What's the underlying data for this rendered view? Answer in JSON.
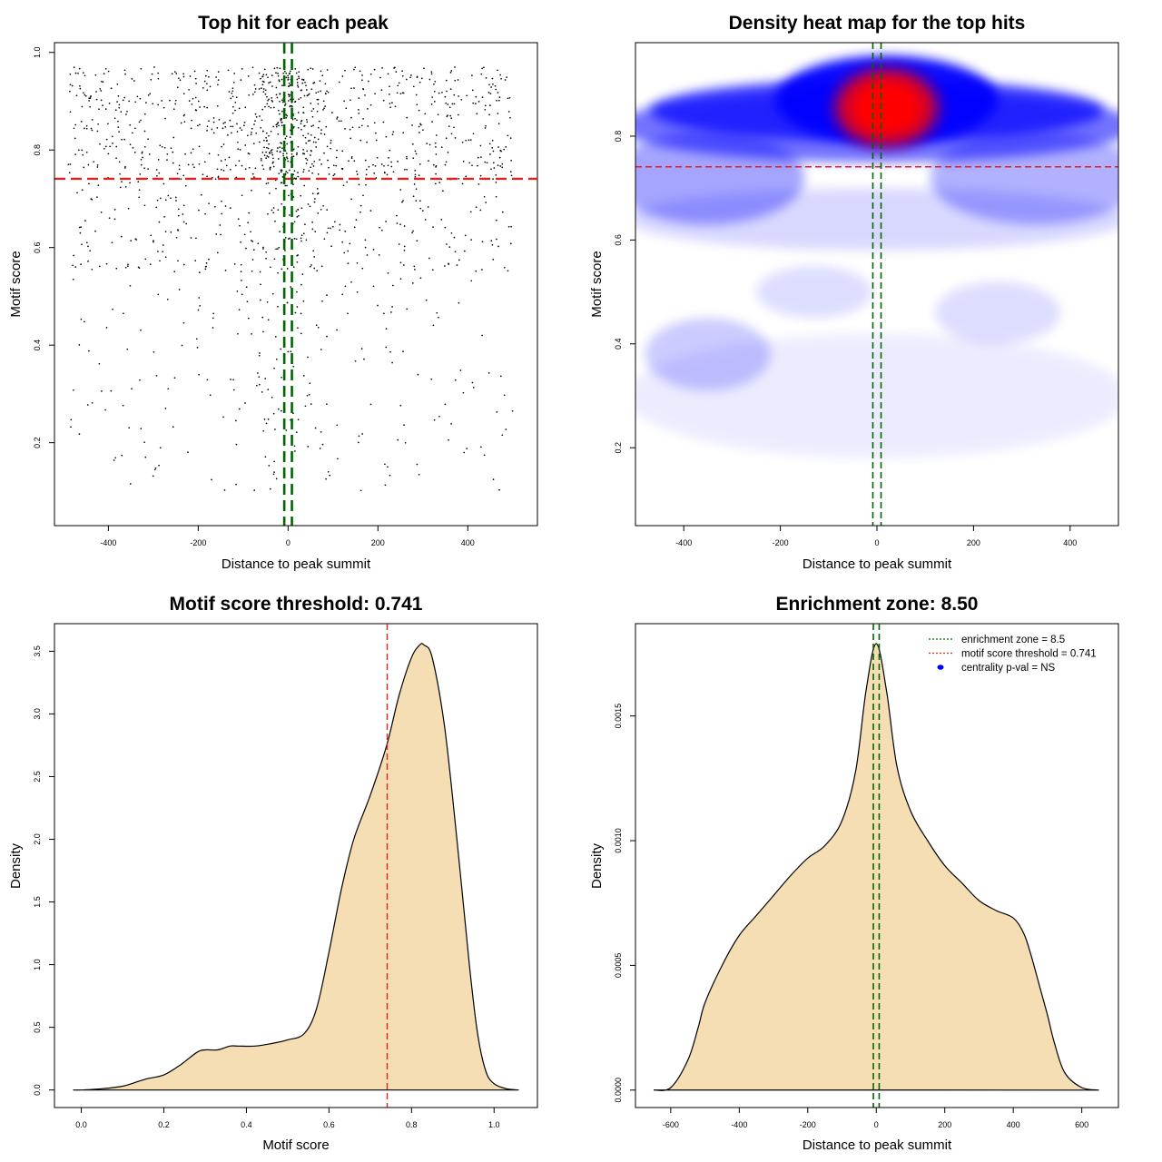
{
  "chart_data": [
    {
      "type": "scatter",
      "title": "Top hit for each peak",
      "xlabel": "Distance to peak summit",
      "ylabel": "Motif score",
      "xlim": [
        -520,
        555
      ],
      "ylim": [
        0.03,
        1.02
      ],
      "xticks": [
        -400,
        -200,
        0,
        200,
        400
      ],
      "yticks": [
        0.2,
        0.4,
        0.6,
        0.8,
        1.0
      ],
      "ytick_labels": [
        "0.2",
        "0.4",
        "0.6",
        "0.8",
        "1.0"
      ],
      "hline": 0.741,
      "vlines": [
        -8.5,
        8.5
      ],
      "hline_color": "#dd2222",
      "vline_color": "#006600"
    },
    {
      "type": "heatmap",
      "title": "Density heat map for the top hits",
      "xlabel": "Distance to peak summit",
      "ylabel": "Motif score",
      "xlim": [
        -500,
        500
      ],
      "ylim": [
        0.05,
        0.98
      ],
      "xticks": [
        -400,
        -200,
        0,
        200,
        400
      ],
      "yticks": [
        0.2,
        0.4,
        0.6,
        0.8
      ],
      "ytick_labels": [
        "0.2",
        "0.4",
        "0.6",
        "0.8"
      ],
      "hline": 0.741,
      "vlines": [
        -8.5,
        8.5
      ],
      "colors": [
        "#ffffff",
        "#0000ff",
        "#ff0000"
      ],
      "density_peak": {
        "x": 20,
        "y": 0.855
      }
    },
    {
      "type": "area",
      "title": "Motif score threshold: 0.741",
      "xlabel": "Motif score",
      "ylabel": "Density",
      "xlim": [
        -0.065,
        1.105
      ],
      "ylim": [
        -0.14,
        3.72
      ],
      "xticks": [
        0.0,
        0.2,
        0.4,
        0.6,
        0.8,
        1.0
      ],
      "xtick_labels": [
        "0.0",
        "0.2",
        "0.4",
        "0.6",
        "0.8",
        "1.0"
      ],
      "yticks": [
        0.0,
        0.5,
        1.0,
        1.5,
        2.0,
        2.5,
        3.0,
        3.5
      ],
      "ytick_labels": [
        "0.0",
        "0.5",
        "1.0",
        "1.5",
        "2.0",
        "2.5",
        "3.0",
        "3.5"
      ],
      "fill_color": "#f5deb3",
      "vline": 0.741,
      "vline_color": "#dd2222",
      "x": [
        -0.02,
        0.0,
        0.05,
        0.1,
        0.13,
        0.16,
        0.2,
        0.24,
        0.28,
        0.3,
        0.33,
        0.36,
        0.38,
        0.42,
        0.46,
        0.5,
        0.54,
        0.57,
        0.6,
        0.63,
        0.66,
        0.7,
        0.74,
        0.77,
        0.8,
        0.82,
        0.83,
        0.85,
        0.88,
        0.91,
        0.94,
        0.96,
        0.98,
        1.0,
        1.03,
        1.06
      ],
      "y": [
        0.0,
        0.0,
        0.01,
        0.03,
        0.06,
        0.09,
        0.12,
        0.2,
        0.3,
        0.32,
        0.32,
        0.35,
        0.35,
        0.35,
        0.37,
        0.4,
        0.45,
        0.65,
        1.1,
        1.6,
        2.0,
        2.35,
        2.75,
        3.15,
        3.45,
        3.55,
        3.55,
        3.45,
        2.9,
        2.0,
        1.0,
        0.45,
        0.15,
        0.05,
        0.01,
        0.0
      ]
    },
    {
      "type": "area",
      "title": "Enrichment zone: 8.50",
      "xlabel": "Distance to peak summit",
      "ylabel": "Density",
      "xlim": [
        -703,
        707
      ],
      "ylim": [
        -7e-05,
        0.00187
      ],
      "xticks": [
        -600,
        -400,
        -200,
        0,
        200,
        400,
        600
      ],
      "yticks": [
        0.0,
        0.0005,
        0.001,
        0.0015
      ],
      "ytick_labels": [
        "0.0000",
        "0.0005",
        "0.0010",
        "0.0015"
      ],
      "fill_color": "#f5deb3",
      "vlines": [
        -8.5,
        8.5
      ],
      "vline_color": "#006600",
      "x": [
        -650,
        -600,
        -550,
        -520,
        -500,
        -450,
        -400,
        -350,
        -300,
        -250,
        -200,
        -150,
        -100,
        -60,
        -30,
        0,
        30,
        60,
        100,
        150,
        200,
        250,
        300,
        350,
        400,
        430,
        450,
        480,
        500,
        520,
        550,
        600,
        650
      ],
      "y": [
        0.0,
        1e-05,
        0.00012,
        0.00025,
        0.00035,
        0.0005,
        0.00062,
        0.0007,
        0.00078,
        0.00086,
        0.00093,
        0.00098,
        0.00108,
        0.00128,
        0.0016,
        0.00179,
        0.0016,
        0.0013,
        0.00112,
        0.001,
        0.0009,
        0.00083,
        0.00076,
        0.00072,
        0.00069,
        0.00063,
        0.00055,
        0.0004,
        0.0003,
        0.00019,
        7e-05,
        1e-05,
        0.0
      ],
      "legend": {
        "position": "top-right",
        "entries": [
          {
            "label": "enrichment zone = 8.5",
            "color": "#006600",
            "style": "dotted-line"
          },
          {
            "label": "motif score threshold = 0.741",
            "color": "#dd2222",
            "style": "dotted-line"
          },
          {
            "label": "centrality p-val = NS",
            "color": "#0000ff",
            "style": "dot"
          }
        ]
      }
    }
  ]
}
